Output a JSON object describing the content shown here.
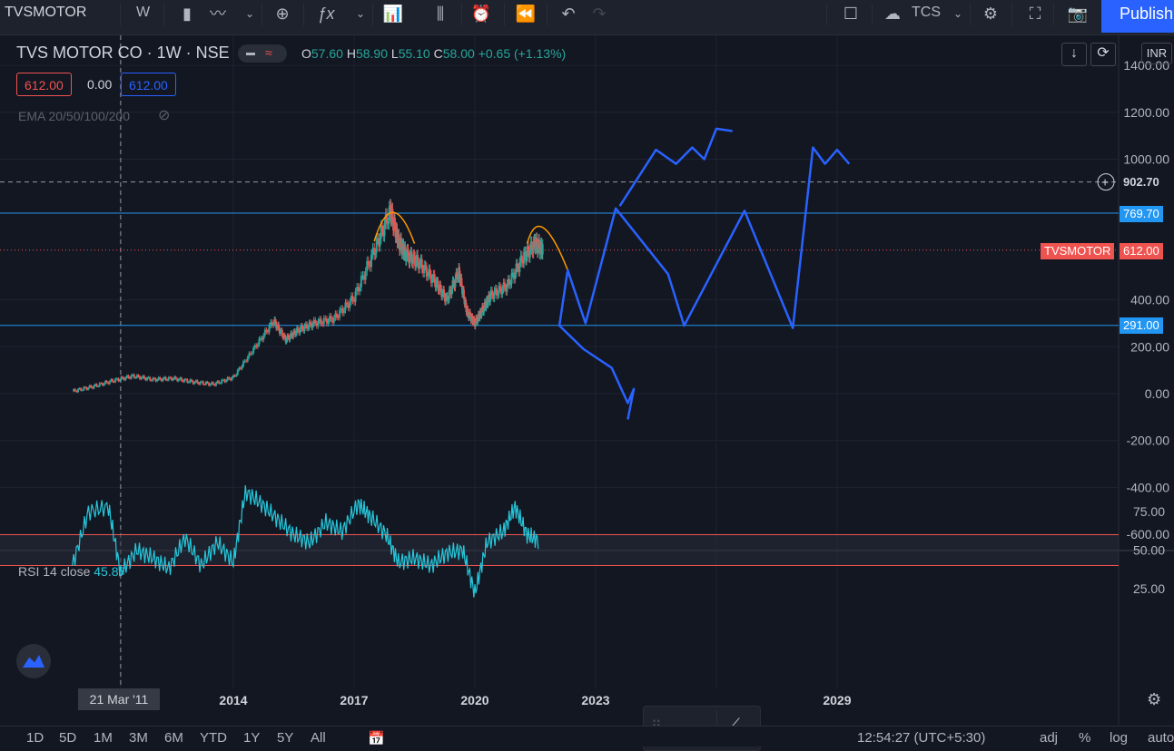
{
  "toolbar": {
    "symbol": "TVSMOTOR",
    "interval": "W",
    "compare_label": "TCS",
    "publish_label": "Publish"
  },
  "legend": {
    "title": "TVS MOTOR CO · 1W · NSE",
    "o_key": "O",
    "o_val": "57.60",
    "h_key": "H",
    "h_val": "58.90",
    "l_key": "L",
    "l_val": "55.10",
    "c_key": "C",
    "c_val": "58.00",
    "change": "+0.65 (+1.13%)",
    "sell_price": "612.00",
    "spread": "0.00",
    "buy_price": "612.00",
    "ema_label": "EMA 20/50/100/200",
    "rsi_label": "RSI 14 close",
    "rsi_value": "45.87",
    "currency": "INR"
  },
  "price_labels": {
    "crosshair": "902.70",
    "level_high": "769.70",
    "symbol_tag": "TVSMOTOR",
    "last": "612.00",
    "level_low": "291.00"
  },
  "colors": {
    "bg": "#131722",
    "up": "#26a69a",
    "down": "#ef5350",
    "level": "#2196f3",
    "projection": "#2962ff",
    "pattern": "#ff9800",
    "rsi": "#26c6da"
  },
  "time_labels": {
    "cursor": "21 Mar '11",
    "t2014": "2014",
    "t2017": "2017",
    "t2020": "2020",
    "t2023": "2023",
    "t2029": "2029"
  },
  "bottom": {
    "ranges": [
      "1D",
      "5D",
      "1M",
      "3M",
      "6M",
      "YTD",
      "1Y",
      "5Y",
      "All"
    ],
    "clock": "12:54:27 (UTC+5:30)",
    "adj": "adj",
    "pct": "%",
    "log": "log",
    "auto": "auto"
  },
  "chart_data": {
    "type": "line",
    "title": "TVS MOTOR CO · 1W · NSE",
    "x_range": [
      2010,
      2031
    ],
    "ylim": [
      -650,
      1450
    ],
    "y_ticks": [
      -600,
      -400,
      -200,
      0,
      200,
      400,
      1000,
      1200,
      1400
    ],
    "x_ticks": [
      "21 Mar '11",
      "2014",
      "2017",
      "2020",
      "2023",
      "2029"
    ],
    "series": [
      {
        "values_x": [
          2010.0,
          2010.5,
          2011.0,
          2011.5,
          2012.0,
          2012.5,
          2013.0,
          2013.5,
          2014.0,
          2014.5,
          2015.0,
          2015.3,
          2015.6,
          2016.0,
          2016.5,
          2017.0,
          2017.5,
          2017.9,
          2018.1,
          2018.3,
          2018.6,
          2019.0,
          2019.3,
          2019.6,
          2019.8,
          2020.0,
          2020.2,
          2020.4,
          2020.8,
          2021.2,
          2021.5,
          2021.7
        ],
        "values_y": [
          10,
          30,
          55,
          75,
          60,
          65,
          50,
          40,
          70,
          190,
          310,
          230,
          270,
          300,
          320,
          410,
          610,
          780,
          650,
          590,
          560,
          480,
          400,
          520,
          350,
          300,
          360,
          420,
          460,
          580,
          640,
          610
        ]
      }
    ],
    "levels": [
      769.7,
      291.0
    ],
    "last_price": 612.0,
    "rsi": {
      "name": "RSI 14 close",
      "bands": [
        60,
        40
      ],
      "ticks": [
        25,
        50,
        75
      ],
      "current": 45.87,
      "values_x": [
        2010.0,
        2010.4,
        2010.9,
        2011.2,
        2011.6,
        2012.0,
        2012.4,
        2012.8,
        2013.2,
        2013.6,
        2014.0,
        2014.3,
        2014.7,
        2015.1,
        2015.5,
        2015.9,
        2016.3,
        2016.7,
        2017.1,
        2017.4,
        2017.8,
        2018.1,
        2018.5,
        2018.9,
        2019.3,
        2019.7,
        2020.0,
        2020.3,
        2020.7,
        2021.0,
        2021.3,
        2021.6
      ],
      "values_y": [
        40,
        75,
        78,
        35,
        50,
        45,
        38,
        58,
        40,
        55,
        42,
        88,
        80,
        70,
        60,
        55,
        68,
        62,
        80,
        72,
        60,
        42,
        45,
        40,
        48,
        50,
        22,
        55,
        62,
        78,
        60,
        56
      ]
    }
  }
}
